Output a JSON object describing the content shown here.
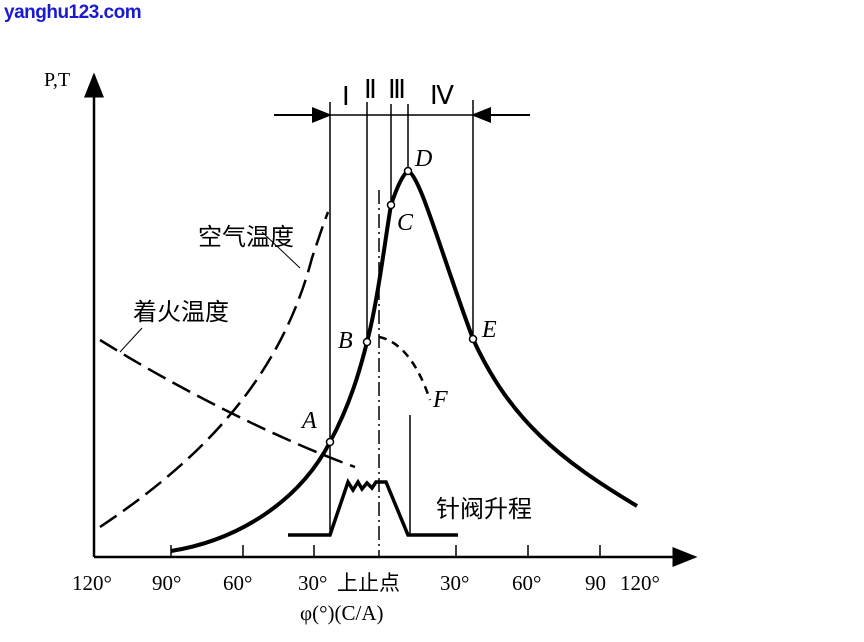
{
  "watermark": "yanghu123.com",
  "y_axis_label": "P,T",
  "x_axis_label": "φ(°)(C/A)",
  "x_ticks": [
    "120°",
    "90°",
    "60°",
    "30°",
    "上止点",
    "30°",
    "60°",
    "90",
    "120°"
  ],
  "phases": [
    "Ⅰ",
    "Ⅱ",
    "Ⅲ",
    "Ⅳ"
  ],
  "points": [
    "A",
    "B",
    "C",
    "D",
    "E",
    "F"
  ],
  "labels": {
    "air_temperature": "空气温度",
    "ignition_temperature": "着火温度",
    "needle_lift": "针阀升程"
  }
}
